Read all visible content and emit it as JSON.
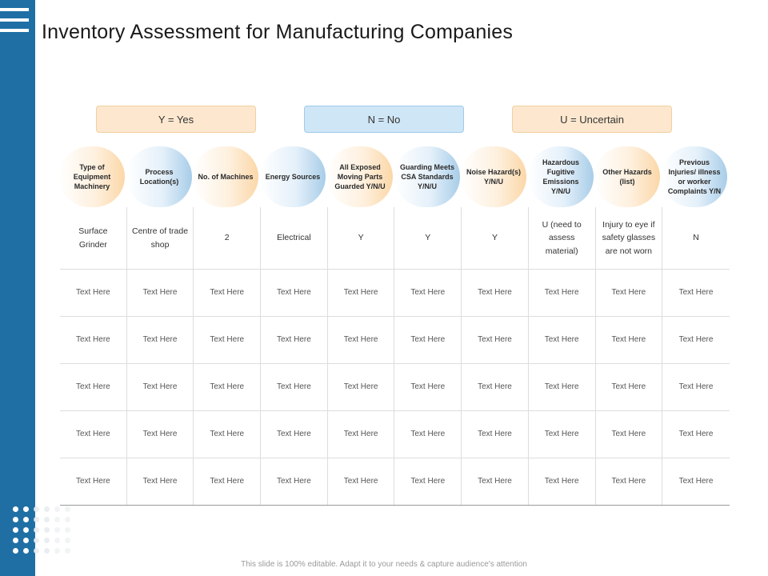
{
  "title": "Inventory Assessment for Manufacturing Companies",
  "legend": {
    "yes": "Y = Yes",
    "no": "N = No",
    "uncertain": "U = Uncertain"
  },
  "columns": [
    "Type of Equipment Machinery",
    "Process Location(s)",
    "No. of Machines",
    "Energy Sources",
    "All Exposed Moving Parts Guarded Y/N/U",
    "Guarding Meets CSA Standards Y/N/U",
    "Noise Hazard(s) Y/N/U",
    "Hazardous Fugitive Emissions Y/N/U",
    "Other Hazards (list)",
    "Previous Injuries/ illness or worker Complaints Y/N"
  ],
  "rows": [
    [
      "Surface Grinder",
      "Centre of trade shop",
      "2",
      "Electrical",
      "Y",
      "Y",
      "Y",
      "U (need to assess material)",
      "Injury to eye if safety glasses are not worn",
      "N"
    ],
    [
      "Text Here",
      "Text Here",
      "Text Here",
      "Text Here",
      "Text Here",
      "Text Here",
      "Text Here",
      "Text Here",
      "Text Here",
      "Text Here"
    ],
    [
      "Text Here",
      "Text Here",
      "Text Here",
      "Text Here",
      "Text Here",
      "Text Here",
      "Text Here",
      "Text Here",
      "Text Here",
      "Text Here"
    ],
    [
      "Text Here",
      "Text Here",
      "Text Here",
      "Text Here",
      "Text Here",
      "Text Here",
      "Text Here",
      "Text Here",
      "Text Here",
      "Text Here"
    ],
    [
      "Text Here",
      "Text Here",
      "Text Here",
      "Text Here",
      "Text Here",
      "Text Here",
      "Text Here",
      "Text Here",
      "Text Here",
      "Text Here"
    ],
    [
      "Text Here",
      "Text Here",
      "Text Here",
      "Text Here",
      "Text Here",
      "Text Here",
      "Text Here",
      "Text Here",
      "Text Here",
      "Text Here"
    ]
  ],
  "footer": "This slide is 100% editable. Adapt it to your needs & capture audience's attention",
  "colors": {
    "sidebar": "#1f6fa5",
    "legend_orange": "#fde8cf",
    "legend_blue": "#cfe6f6",
    "header_orange": "#fbd7a8",
    "header_blue": "#a8cde8"
  },
  "icons": {
    "menu": "hamburger-menu-icon",
    "decoration": "dot-grid-decoration"
  }
}
